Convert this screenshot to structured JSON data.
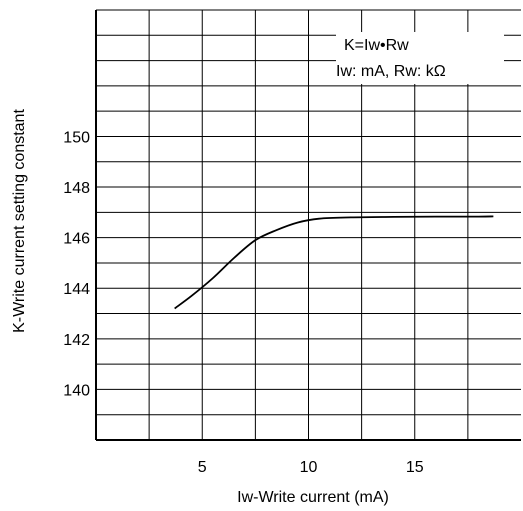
{
  "chart_data": {
    "type": "line",
    "title": "",
    "xlabel": "Iw-Write current (mA)",
    "ylabel": "K-Write current setting constant",
    "xlim": [
      0,
      20
    ],
    "ylim": [
      138,
      155
    ],
    "x_ticks": [
      5,
      10,
      15
    ],
    "x_tick_labels": [
      "5",
      "10",
      "15"
    ],
    "x_grid": [
      2.5,
      5,
      7.5,
      10,
      12.5,
      15,
      17.5
    ],
    "y_ticks": [
      140,
      142,
      144,
      146,
      148,
      150
    ],
    "y_tick_labels": [
      "140",
      "142",
      "144",
      "146",
      "148",
      "150"
    ],
    "y_grid": [
      139,
      140,
      141,
      142,
      143,
      144,
      145,
      146,
      147,
      148,
      149,
      150,
      151,
      152,
      153,
      154
    ],
    "grid": true,
    "annotations": [
      "K=Iw•Rw",
      "Iw: mA, Rw: kΩ"
    ],
    "annotation_placement": "top-right",
    "series": [
      {
        "x": [
          3.7,
          4.5,
          5.5,
          6.5,
          7.5,
          8.5,
          9.5,
          10.5,
          12,
          14,
          16,
          18,
          18.7
        ],
        "y": [
          143.2,
          143.7,
          144.4,
          145.2,
          145.9,
          146.3,
          146.6,
          146.75,
          146.8,
          146.82,
          146.83,
          146.83,
          146.84
        ]
      }
    ],
    "line_color": "#000000"
  }
}
